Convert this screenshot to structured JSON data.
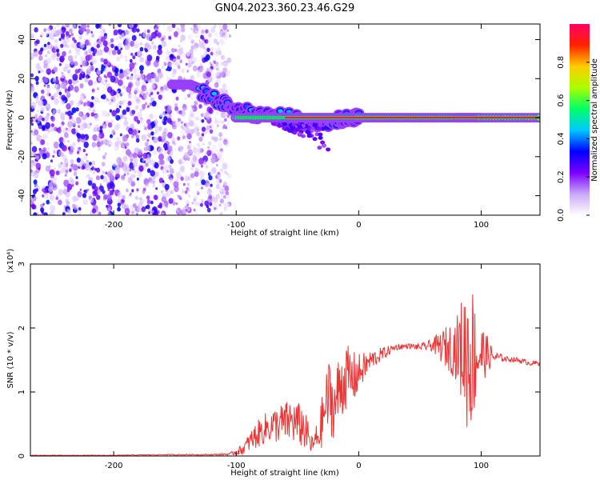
{
  "title": "GN04.2023.360.23.46.G29",
  "chart_data": [
    {
      "type": "heatmap",
      "xlabel": "Height of straight line (km)",
      "ylabel": "Frequency (Hz)",
      "xlim": [
        -268,
        148
      ],
      "ylim": [
        -50,
        48
      ],
      "x_ticks": [
        -200,
        -100,
        0,
        100
      ],
      "x_tick_labels": [
        "-200",
        "-100",
        "0",
        "100"
      ],
      "y_ticks": [
        -40,
        -20,
        0,
        20,
        40
      ],
      "y_tick_labels": [
        "-40",
        "-20",
        "0",
        "20",
        "40"
      ],
      "colorbar": {
        "label": "Normalized spectral amplitude",
        "range": [
          0,
          1
        ],
        "ticks": [
          0.0,
          0.2,
          0.4,
          0.6,
          0.8
        ],
        "tick_labels": [
          "0.0",
          "0.2",
          "0.4",
          "0.6",
          "0.8"
        ],
        "colormap": [
          "#ffffff",
          "#c9a8f7",
          "#7a00ff",
          "#0000ff",
          "#00c8ff",
          "#00ff66",
          "#aaff00",
          "#ffcc00",
          "#ff2200",
          "#ff0066"
        ]
      },
      "noise_region": {
        "x": [
          -268,
          -105
        ],
        "y": [
          -50,
          48
        ],
        "amplitude": [
          0.05,
          0.35
        ]
      },
      "traces": [
        {
          "x": [
            -152,
            -138,
            -130
          ],
          "y": [
            17,
            17,
            15
          ],
          "amplitude": 0.55
        },
        {
          "x": [
            -128,
            -112,
            -100,
            -85,
            -70,
            -55,
            -45,
            -35,
            -25,
            -15,
            -5,
            0
          ],
          "y": [
            13,
            8,
            4,
            2,
            1,
            0,
            -2,
            -3,
            -2,
            -1,
            0,
            0
          ],
          "amplitude": 0.45
        },
        {
          "x": [
            -100,
            -60,
            -30,
            0,
            40,
            80,
            100,
            148
          ],
          "y": [
            0,
            0,
            0,
            0,
            0,
            0,
            0,
            0
          ],
          "amplitude": 0.95
        }
      ],
      "grid": false
    },
    {
      "type": "line",
      "xlabel": "Height of straight line (km)",
      "ylabel": "SNR (10 * v/v)",
      "y_multiplier": "(x10⁴)",
      "xlim": [
        -268,
        148
      ],
      "ylim": [
        0,
        3
      ],
      "x_ticks": [
        -200,
        -100,
        0,
        100
      ],
      "x_tick_labels": [
        "-200",
        "-100",
        "0",
        "100"
      ],
      "y_ticks": [
        0,
        1,
        2,
        3
      ],
      "y_tick_labels": [
        "0",
        "1",
        "2",
        "3"
      ],
      "line_color": "#ee3333",
      "series": [
        {
          "x": [
            -268,
            -240,
            -200,
            -160,
            -120,
            -105,
            -95,
            -85,
            -75,
            -65,
            -55,
            -45,
            -38,
            -32,
            -28,
            -24,
            -20,
            -15,
            -10,
            -5,
            0,
            10,
            20,
            30,
            40,
            50,
            60,
            70,
            80,
            85,
            90,
            95,
            100,
            105,
            110,
            120,
            130,
            140,
            148
          ],
          "y": [
            0.01,
            0.01,
            0.01,
            0.02,
            0.02,
            0.03,
            0.1,
            0.3,
            0.45,
            0.5,
            0.55,
            0.45,
            0.15,
            0.35,
            0.7,
            0.95,
            0.75,
            1.1,
            1.25,
            1.2,
            1.3,
            1.5,
            1.6,
            1.7,
            1.72,
            1.7,
            1.73,
            1.7,
            1.68,
            1.65,
            1.6,
            1.58,
            1.6,
            1.58,
            1.55,
            1.52,
            1.5,
            1.45,
            1.45
          ],
          "noise": [
            0.005,
            0.005,
            0.005,
            0.008,
            0.01,
            0.02,
            0.08,
            0.2,
            0.25,
            0.3,
            0.35,
            0.35,
            0.15,
            0.3,
            0.5,
            0.6,
            0.5,
            0.6,
            0.5,
            0.45,
            0.3,
            0.15,
            0.1,
            0.05,
            0.04,
            0.05,
            0.1,
            0.3,
            0.5,
            0.9,
            1.4,
            0.9,
            0.5,
            0.3,
            0.1,
            0.04,
            0.04,
            0.04,
            0.04
          ]
        }
      ],
      "grid": false
    }
  ]
}
